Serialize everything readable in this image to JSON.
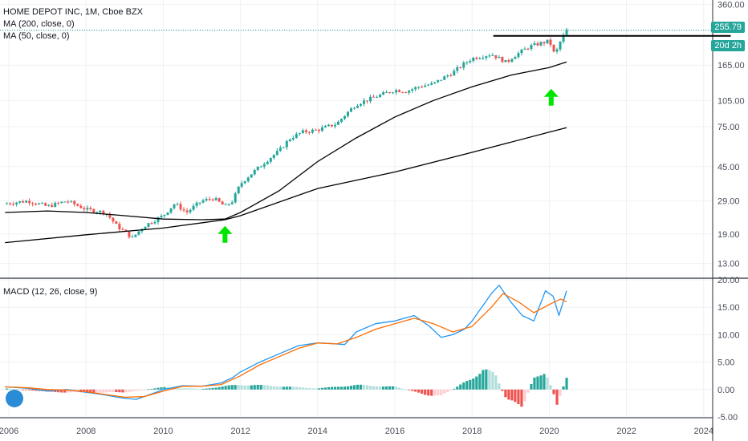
{
  "legend": {
    "title": "HOME DEPOT INC, 1M, Cboe BZX",
    "ma200": "MA (200, close, 0)",
    "ma50": "MA (50, close, 0)",
    "macd": "MACD (12, 26, close, 9)"
  },
  "price_tag": "255.79",
  "time_tag": "20d 2h",
  "colors": {
    "up": "#26a69a",
    "down": "#ef5350",
    "macd_line": "#2196f3",
    "signal_line": "#ff6d00",
    "ma": "#000000",
    "arrow": "#00e600",
    "hist_up_strong": "#26a69a",
    "hist_up_weak": "#b2dfdb",
    "hist_down_strong": "#ef5350",
    "hist_down_weak": "#ffcdd2"
  },
  "chart_data": [
    {
      "type": "candlestick",
      "title": "HOME DEPOT INC, 1M, Cboe BZX",
      "y_scale": "log",
      "ylim": [
        11,
        380
      ],
      "xlim": [
        2005.9,
        2024.7
      ],
      "y_ticks": [
        13,
        19,
        29,
        45,
        75,
        105,
        165,
        255.79,
        360
      ],
      "y_tick_labels": [
        "13.00",
        "19.00",
        "29.00",
        "45.00",
        "75.00",
        "105.00",
        "165.00",
        "255.79",
        "360.00"
      ],
      "x_ticks": [
        2006,
        2008,
        2010,
        2012,
        2014,
        2016,
        2018,
        2020,
        2022,
        2024
      ],
      "x_tick_labels": [
        "2006",
        "2008",
        "2010",
        "2012",
        "2014",
        "2016",
        "2018",
        "2020",
        "2022",
        "2024"
      ],
      "close_anchors": {
        "x": [
          2005.9,
          2006.5,
          2007.0,
          2007.5,
          2008.0,
          2008.5,
          2008.8,
          2009.2,
          2009.5,
          2010.0,
          2010.3,
          2010.6,
          2011.0,
          2011.3,
          2011.6,
          2011.8,
          2012.0,
          2012.5,
          2013.0,
          2013.3,
          2013.6,
          2014.0,
          2014.5,
          2015.0,
          2015.5,
          2016.0,
          2016.3,
          2016.6,
          2017.0,
          2017.5,
          2018.0,
          2018.5,
          2018.9,
          2019.0,
          2019.5,
          2020.0,
          2020.15,
          2020.25,
          2020.45
        ],
        "y": [
          28,
          29,
          27,
          29,
          26,
          25,
          21,
          18,
          21,
          24,
          28,
          25,
          29,
          30,
          27,
          29,
          36,
          45,
          55,
          65,
          70,
          72,
          78,
          100,
          110,
          120,
          118,
          125,
          130,
          150,
          180,
          190,
          170,
          180,
          210,
          225,
          185,
          215,
          258
        ]
      },
      "ma200_line": {
        "x": [
          2005.9,
          2008.0,
          2010.0,
          2011.6,
          2012.0,
          2014.0,
          2016.0,
          2018.0,
          2020.0,
          2020.45
        ],
        "y": [
          17,
          18.8,
          20.5,
          22.8,
          24,
          34,
          42,
          54,
          70,
          74
        ]
      },
      "ma50_line": {
        "x": [
          2005.9,
          2007.0,
          2008.0,
          2009.0,
          2010.0,
          2011.0,
          2011.6,
          2012.0,
          2013.0,
          2014.0,
          2015.0,
          2016.0,
          2017.0,
          2018.0,
          2019.0,
          2020.0,
          2020.45
        ],
        "y": [
          25,
          25.5,
          25,
          24,
          23,
          22.8,
          23,
          25,
          33,
          48,
          65,
          85,
          105,
          125,
          145,
          160,
          172
        ]
      },
      "resistance_line": {
        "from_x": 2018.55,
        "to_x": 2024.7,
        "y": 240
      },
      "arrows": [
        {
          "x": 2011.6,
          "y": 19
        },
        {
          "x": 2020.05,
          "y": 110
        }
      ]
    },
    {
      "type": "line",
      "title": "MACD (12, 26, close, 9)",
      "ylim": [
        -5,
        20
      ],
      "y_ticks": [
        -5,
        0,
        5,
        10,
        15,
        20
      ],
      "y_tick_labels": [
        "-5.00",
        "0.00",
        "5.00",
        "10.00",
        "15.00",
        "20.00"
      ],
      "series": [
        {
          "key": "macd",
          "x": [
            2005.9,
            2006.5,
            2007.0,
            2007.5,
            2008.0,
            2008.5,
            2008.9,
            2009.3,
            2009.7,
            2010.0,
            2010.5,
            2011.0,
            2011.5,
            2011.8,
            2012.0,
            2012.5,
            2013.0,
            2013.5,
            2014.0,
            2014.3,
            2014.7,
            2015.0,
            2015.5,
            2016.0,
            2016.5,
            2016.9,
            2017.2,
            2017.5,
            2017.8,
            2018.0,
            2018.5,
            2018.7,
            2019.0,
            2019.3,
            2019.6,
            2019.9,
            2020.1,
            2020.25,
            2020.45
          ],
          "y": [
            0.5,
            0.2,
            -0.3,
            0,
            -0.5,
            -1,
            -1.5,
            -1.8,
            -0.8,
            0,
            0.7,
            0.6,
            1.2,
            2.2,
            3.2,
            5,
            6.5,
            8,
            8.5,
            8.4,
            8.2,
            10.5,
            12,
            12.5,
            13.5,
            11.5,
            9.5,
            10,
            11,
            12.5,
            17.5,
            19,
            16,
            13.5,
            12.5,
            18,
            17,
            13.5,
            18
          ]
        },
        {
          "key": "signal",
          "x": [
            2005.9,
            2006.5,
            2007.0,
            2007.5,
            2008.0,
            2008.5,
            2009.0,
            2009.5,
            2010.0,
            2010.5,
            2011.0,
            2011.5,
            2012.0,
            2012.5,
            2013.0,
            2013.5,
            2014.0,
            2014.5,
            2015.0,
            2015.5,
            2016.0,
            2016.5,
            2017.0,
            2017.5,
            2018.0,
            2018.5,
            2018.8,
            2019.2,
            2019.6,
            2020.0,
            2020.3,
            2020.45
          ],
          "y": [
            0.5,
            0.3,
            0,
            -0.1,
            -0.4,
            -0.9,
            -1.4,
            -1.3,
            -0.3,
            0.6,
            0.6,
            0.9,
            2.5,
            4.5,
            6,
            7.5,
            8.5,
            8.3,
            9.5,
            11,
            12,
            13,
            12,
            10.5,
            11.5,
            15,
            17.5,
            16,
            14,
            15.5,
            16.5,
            16
          ]
        }
      ],
      "histogram": {
        "x": [
          2006.0,
          2007.0,
          2008.0,
          2009.0,
          2010.0,
          2011.0,
          2012.0,
          2013.0,
          2014.0,
          2015.0,
          2016.0,
          2016.8,
          2017.2,
          2018.0,
          2018.3,
          2018.6,
          2018.9,
          2019.3,
          2019.6,
          2019.9,
          2020.2,
          2020.45
        ],
        "y": [
          0.2,
          -0.4,
          -0.6,
          -0.5,
          0.4,
          0.1,
          0.9,
          0.6,
          0.2,
          0.8,
          0.5,
          -0.9,
          -1.2,
          2.0,
          4.0,
          2.5,
          -2.0,
          -3.0,
          2.0,
          3.5,
          -2.5,
          2.0
        ]
      }
    }
  ]
}
